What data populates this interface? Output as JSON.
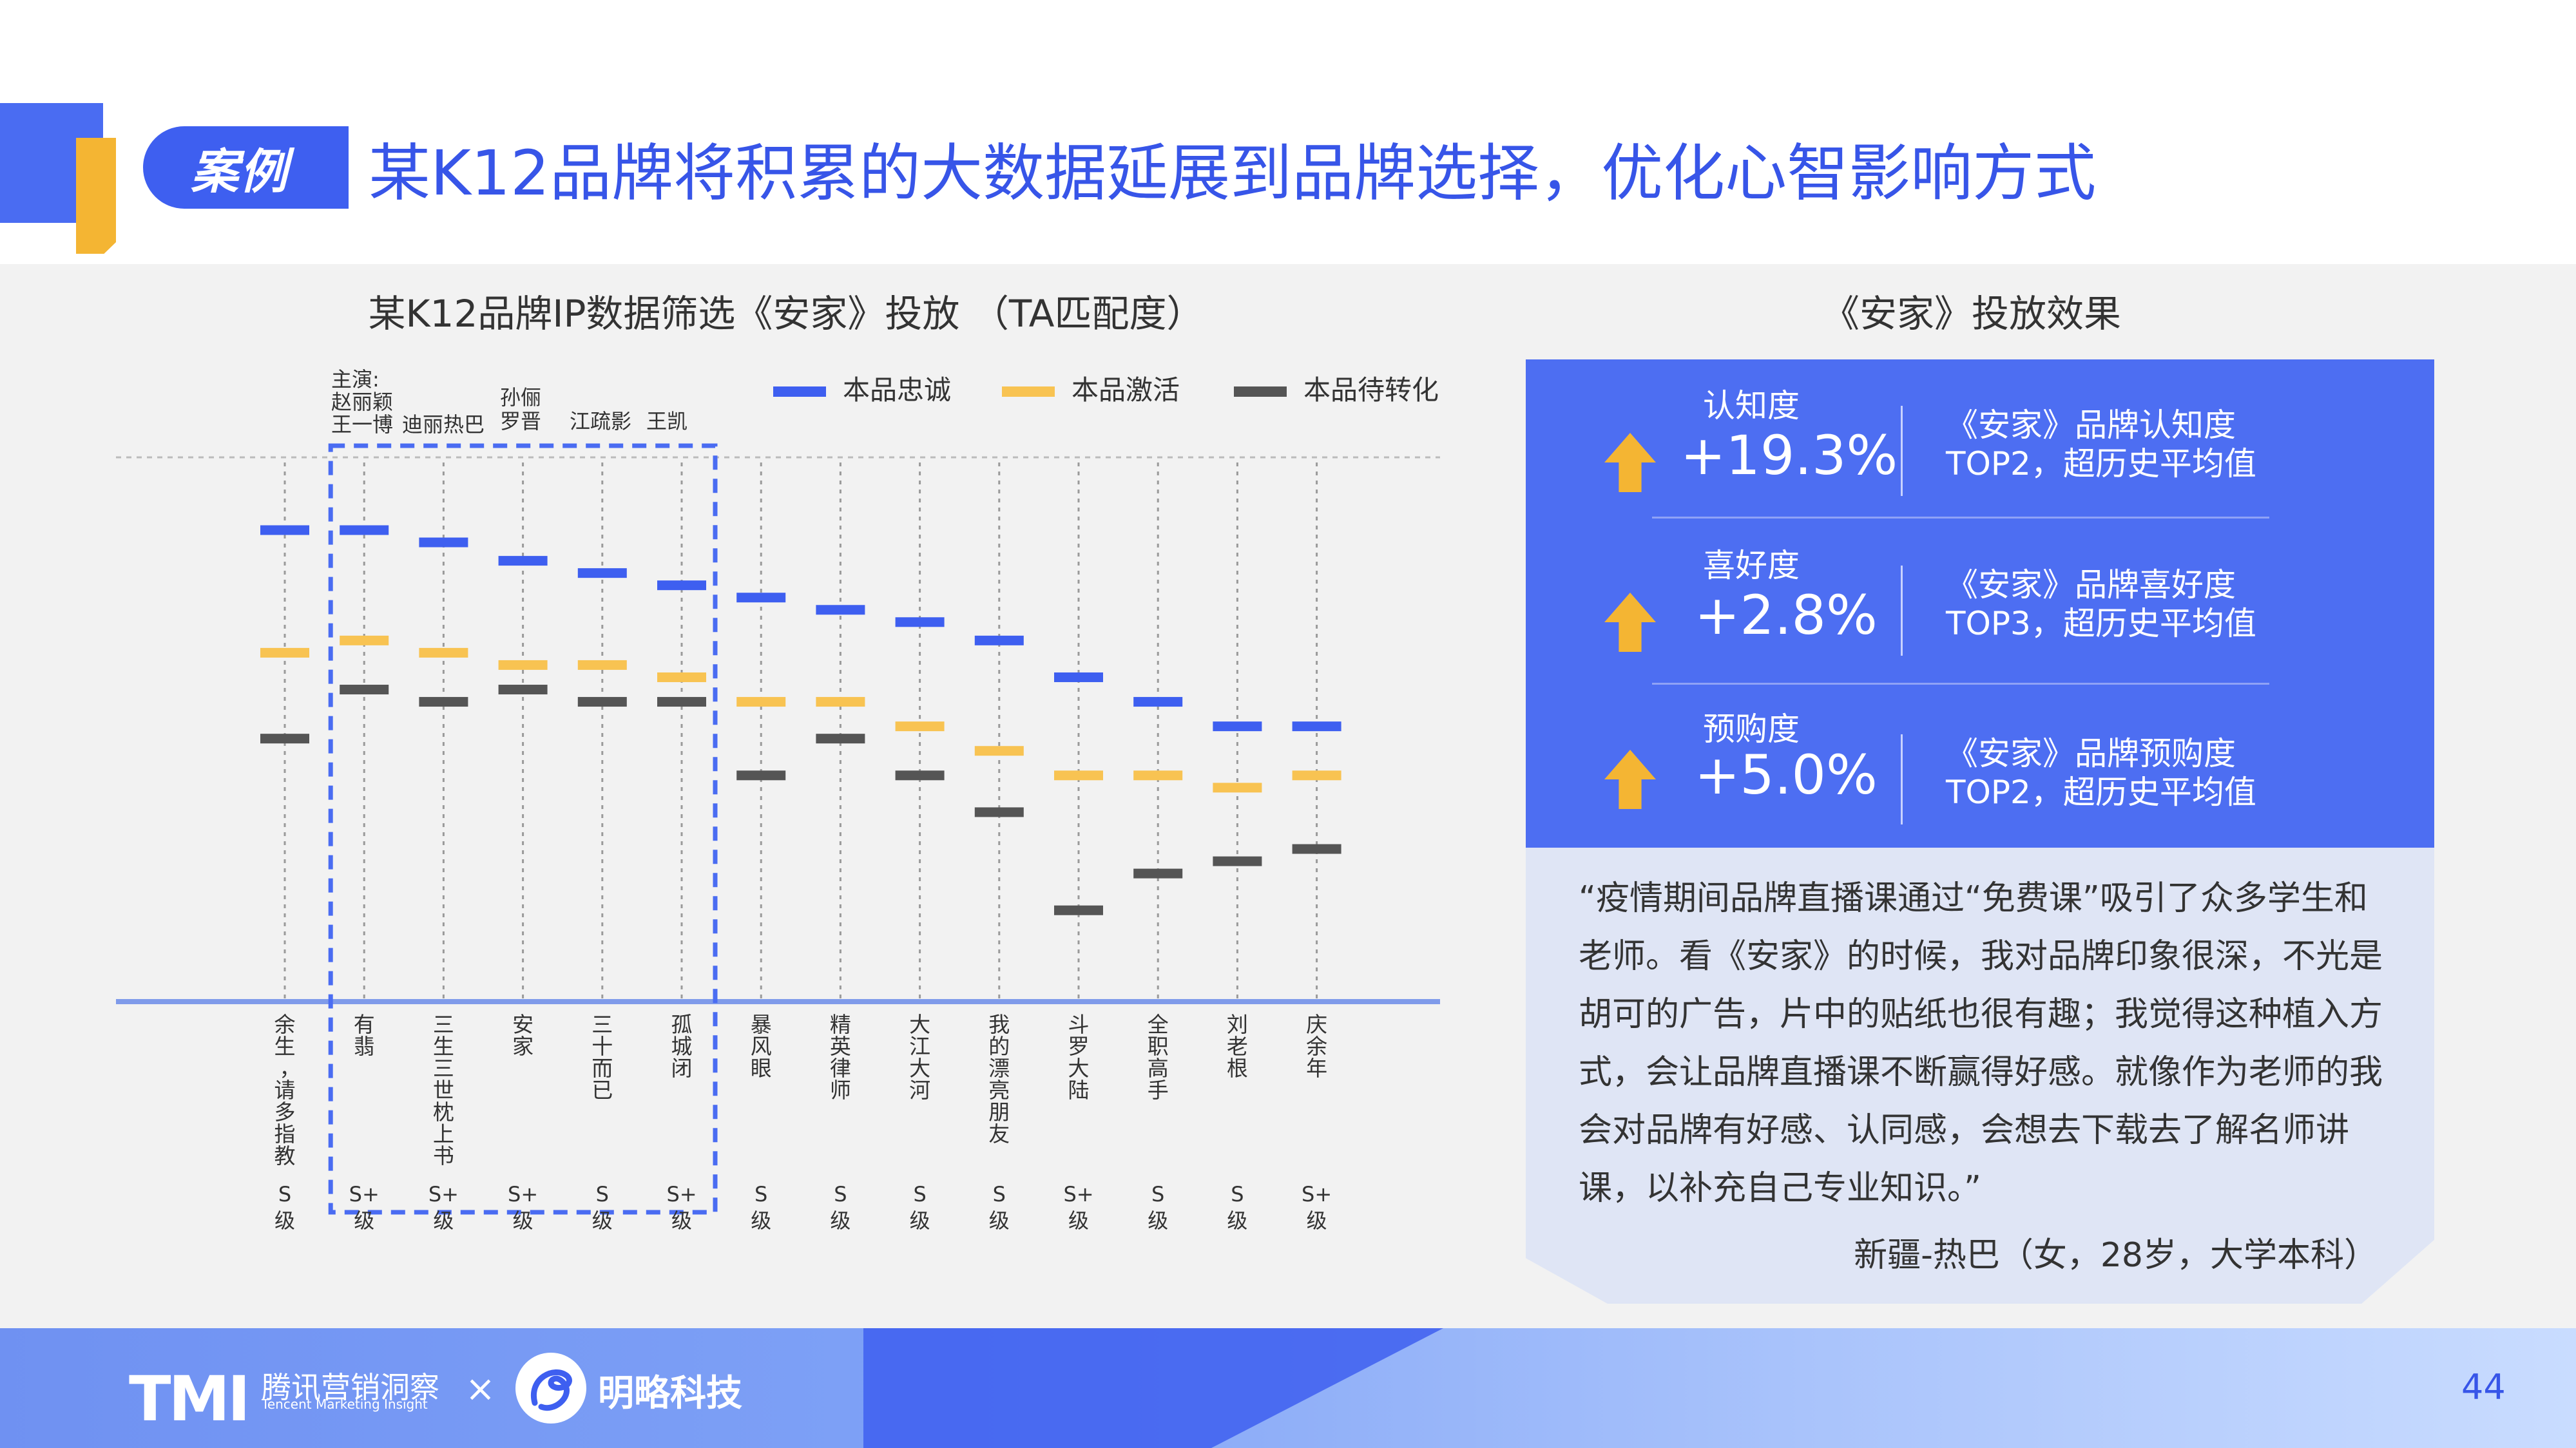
{
  "header": {
    "tag": "案例",
    "title": "某K12品牌将积累的大数据延展到品牌选择，优化心智影响方式"
  },
  "colors": {
    "accent_blue": "#3e5ff0",
    "accent_yellow": "#f4b533",
    "dark_gray": "#555555"
  },
  "chart_data": {
    "type": "scatter",
    "title": "某K12品牌IP数据筛选《安家》投放 （TA匹配度）",
    "legend_position": "top-right",
    "legend": [
      "本品忠诚",
      "本品激活",
      "本品待转化"
    ],
    "cast_note": {
      "prefix": "主演:",
      "names": [
        "赵丽颖",
        "王一博",
        "迪丽热巴",
        "孙俪",
        "罗晋",
        "江疏影",
        "王凯"
      ]
    },
    "categories": [
      "余生，请多指教",
      "有翡",
      "三生三世枕上书",
      "安家",
      "三十而已",
      "孤城闭",
      "暴风眼",
      "精英律师",
      "大江大河",
      "我的漂亮朋友",
      "斗罗大陆",
      "全职高手",
      "刘老根",
      "庆余年"
    ],
    "grades": [
      "S级",
      "S+级",
      "S+级",
      "S+级",
      "S级",
      "S+级",
      "S级",
      "S级",
      "S级",
      "S级",
      "S+级",
      "S级",
      "S级",
      "S+级"
    ],
    "highlighted_categories": [
      "有翡",
      "三生三世枕上书",
      "安家",
      "三十而已",
      "孤城闭"
    ],
    "series": [
      {
        "name": "本品忠诚",
        "color": "#3e5ff0",
        "values": [
          100,
          100,
          98,
          95,
          93,
          91,
          89,
          87,
          85,
          82,
          76,
          72,
          68,
          68
        ]
      },
      {
        "name": "本品激活",
        "color": "#f8c352",
        "values": [
          80,
          82,
          80,
          78,
          78,
          76,
          72,
          72,
          68,
          64,
          60,
          60,
          58,
          60
        ]
      },
      {
        "name": "本品待转化",
        "color": "#555555",
        "values": [
          66,
          74,
          72,
          74,
          72,
          72,
          60,
          66,
          60,
          54,
          38,
          44,
          46,
          48
        ]
      }
    ],
    "ylim": [
      0,
      110
    ],
    "grid": false
  },
  "right": {
    "title": "《安家》投放效果",
    "metrics": [
      {
        "label": "认知度",
        "value": "+19.3%",
        "desc1": "《安家》品牌认知度",
        "desc2": "TOP2，超历史平均值"
      },
      {
        "label": "喜好度",
        "value": "+2.8%",
        "desc1": "《安家》品牌喜好度",
        "desc2": "TOP3，超历史平均值"
      },
      {
        "label": "预购度",
        "value": "+5.0%",
        "desc1": "《安家》品牌预购度",
        "desc2": "TOP2，超历史平均值"
      }
    ],
    "quote": "“疫情期间品牌直播课通过“免费课”吸引了众多学生和老师。看《安家》的时候，我对品牌印象很深，不光是胡可的广告，片中的贴纸也很有趣；我觉得这种植入方式，会让品牌直播课不断赢得好感。就像作为老师的我会对品牌有好感、认同感，会想去下载去了解名师讲课，以补充自己专业知识。”",
    "quote_author": "新疆-热巴（女，28岁，大学本科）"
  },
  "footer": {
    "tmi_logo": "TMI",
    "tmi_name": "腾讯营销洞察",
    "tmi_sub": "Tencent Marketing Insight",
    "times": "×",
    "partner_name": "明略科技",
    "page": "44"
  }
}
